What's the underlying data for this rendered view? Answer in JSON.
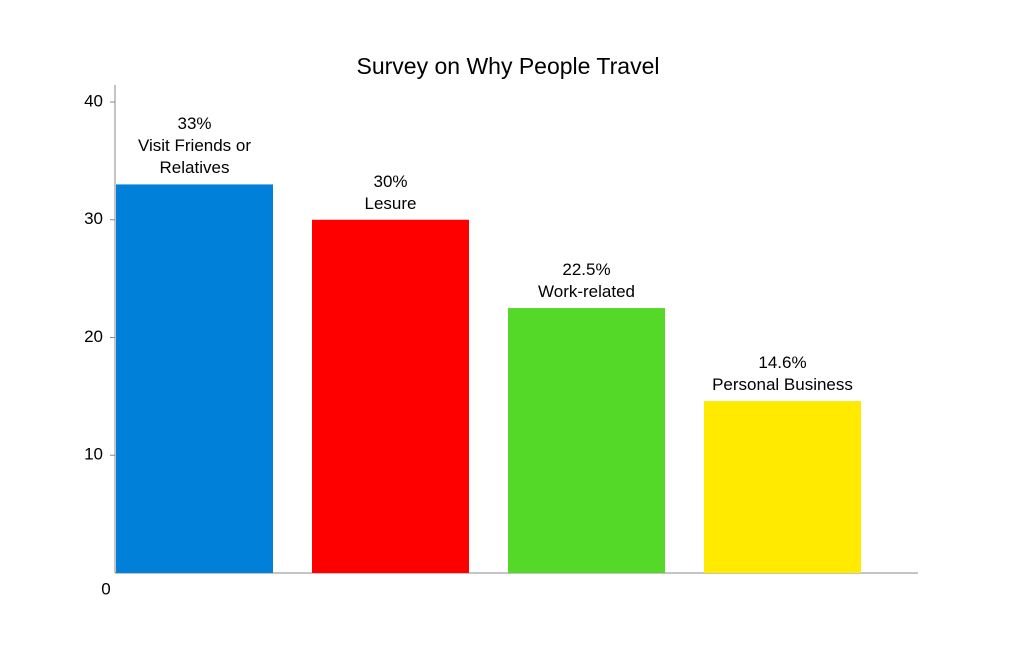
{
  "chart_data": {
    "type": "bar",
    "title": "Survey on Why People Travel",
    "categories": [
      "Visit Friends or Relatives",
      "Lesure",
      "Work-related",
      "Personal Business"
    ],
    "values": [
      33,
      30,
      22.5,
      14.6
    ],
    "value_labels": [
      "33%",
      "30%",
      "22.5%",
      "14.6%"
    ],
    "colors": [
      "#0080d8",
      "#ff0000",
      "#55d929",
      "#ffea00"
    ],
    "ylim": [
      0,
      40
    ],
    "yticks": [
      0,
      10,
      20,
      30,
      40
    ],
    "grid": false
  }
}
